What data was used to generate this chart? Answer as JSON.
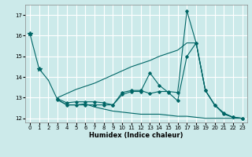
{
  "xlabel": "Humidex (Indice chaleur)",
  "bg_color": "#cceaea",
  "grid_color": "#ffffff",
  "line_color": "#006666",
  "x": [
    0,
    1,
    2,
    3,
    4,
    5,
    6,
    7,
    8,
    9,
    10,
    11,
    12,
    13,
    14,
    15,
    16,
    17,
    18,
    19,
    20,
    21,
    22,
    23
  ],
  "y1": [
    16.1,
    14.4,
    null,
    null,
    null,
    null,
    null,
    null,
    null,
    null,
    null,
    null,
    null,
    null,
    null,
    null,
    null,
    null,
    null,
    null,
    null,
    null,
    null,
    null
  ],
  "y2": [
    null,
    null,
    13.85,
    12.9,
    12.65,
    12.65,
    12.7,
    12.55,
    12.45,
    12.35,
    12.3,
    12.25,
    12.2,
    12.2,
    12.2,
    12.15,
    12.1,
    12.1,
    12.05,
    12.0,
    12.0,
    12.0,
    12.0,
    12.0
  ],
  "y3": [
    null,
    null,
    null,
    12.9,
    12.65,
    12.65,
    12.65,
    12.65,
    12.65,
    12.65,
    13.15,
    13.3,
    13.3,
    14.2,
    13.6,
    13.25,
    12.85,
    15.0,
    15.65,
    13.35,
    12.65,
    12.2,
    12.05,
    12.0
  ],
  "y4": [
    null,
    null,
    null,
    12.95,
    12.75,
    12.8,
    12.8,
    12.8,
    12.75,
    12.65,
    13.25,
    13.35,
    13.35,
    13.2,
    13.3,
    13.3,
    13.25,
    17.2,
    15.65,
    13.35,
    12.65,
    12.25,
    12.05,
    12.0
  ],
  "y5": [
    null,
    null,
    null,
    13.0,
    13.2,
    13.4,
    13.55,
    13.7,
    13.9,
    14.1,
    14.3,
    14.5,
    14.65,
    14.8,
    15.0,
    15.15,
    15.3,
    15.65,
    15.65,
    13.35,
    12.65,
    12.25,
    12.05,
    12.0
  ],
  "ylim": [
    11.8,
    17.5
  ],
  "yticks": [
    12,
    13,
    14,
    15,
    16,
    17
  ],
  "xticks": [
    0,
    1,
    2,
    3,
    4,
    5,
    6,
    7,
    8,
    9,
    10,
    11,
    12,
    13,
    14,
    15,
    16,
    17,
    18,
    19,
    20,
    21,
    22,
    23
  ]
}
